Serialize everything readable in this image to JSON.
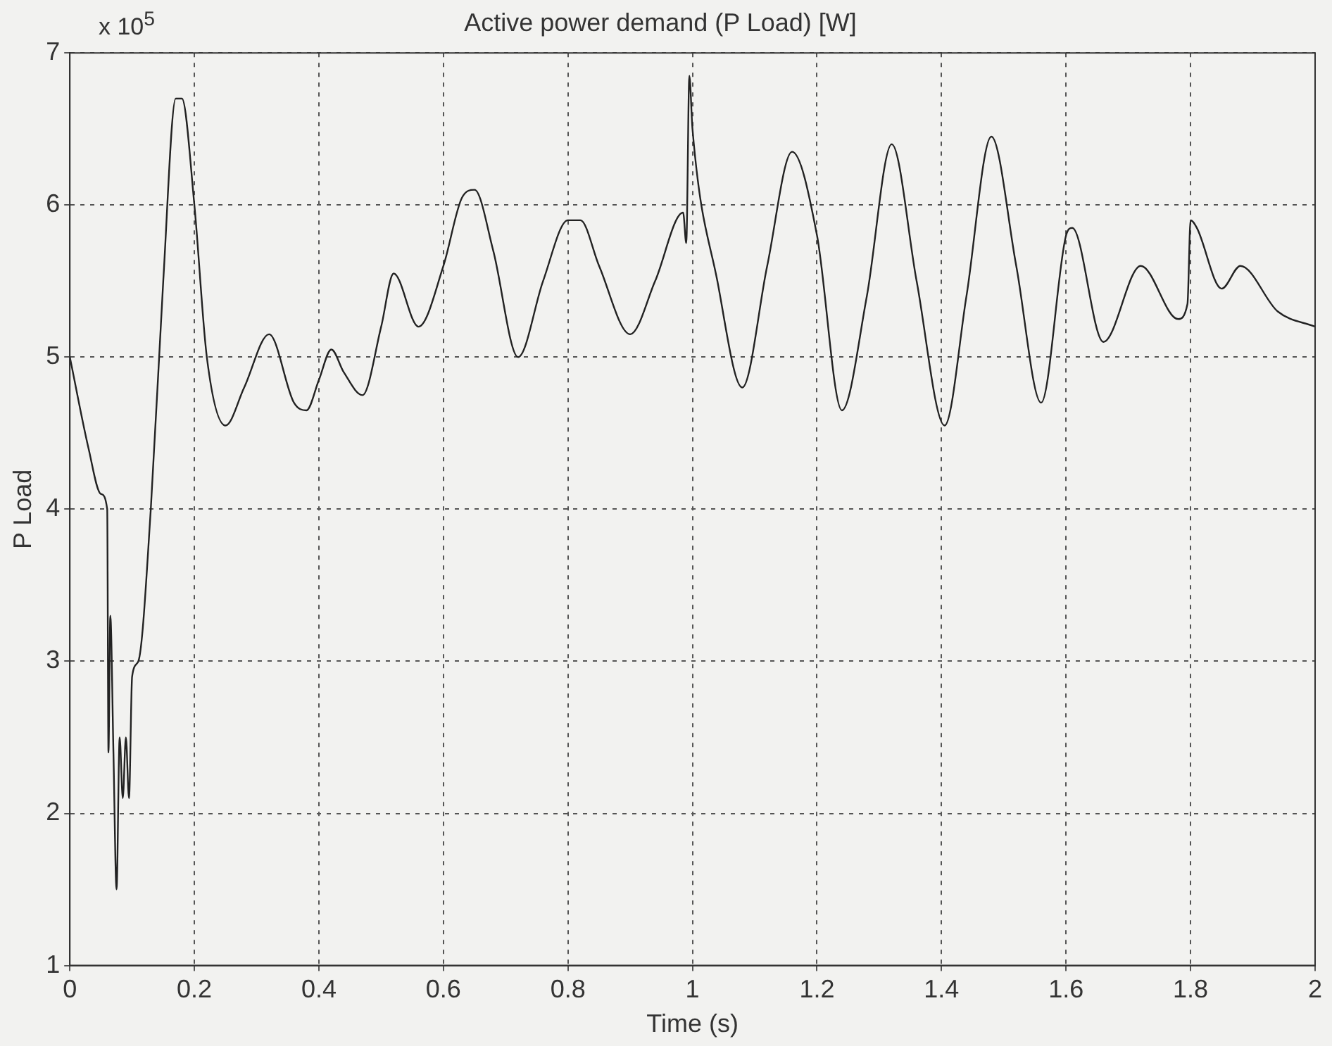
{
  "chart_data": {
    "type": "line",
    "title": "Active power demand (P Load) [W]",
    "xlabel": "Time (s)",
    "ylabel": "P Load",
    "annotations": [
      "x 10$^{5}$"
    ],
    "series": [
      {
        "color": "#222222",
        "x": [
          0,
          0.03,
          0.05,
          0.06,
          0.062,
          0.065,
          0.07,
          0.075,
          0.08,
          0.085,
          0.09,
          0.095,
          0.1,
          0.11,
          0.13,
          0.15,
          0.17,
          0.18,
          0.2,
          0.22,
          0.25,
          0.28,
          0.32,
          0.36,
          0.38,
          0.4,
          0.42,
          0.44,
          0.47,
          0.5,
          0.52,
          0.56,
          0.6,
          0.63,
          0.65,
          0.68,
          0.72,
          0.76,
          0.8,
          0.82,
          0.85,
          0.9,
          0.94,
          0.985,
          0.99,
          0.995,
          1.0,
          1.04,
          1.08,
          1.12,
          1.16,
          1.2,
          1.24,
          1.28,
          1.32,
          1.36,
          1.405,
          1.44,
          1.48,
          1.52,
          1.56,
          1.6,
          1.61,
          1.66,
          1.72,
          1.78,
          1.795,
          1.8,
          1.81,
          1.85,
          1.88,
          1.94,
          2.0
        ],
        "values": [
          5.0,
          4.4,
          4.1,
          4.0,
          2.4,
          3.3,
          2.4,
          1.5,
          2.5,
          2.1,
          2.5,
          2.1,
          2.9,
          3.0,
          4.0,
          5.5,
          6.7,
          6.7,
          6.0,
          5.0,
          4.55,
          4.8,
          5.15,
          4.7,
          4.65,
          4.85,
          5.05,
          4.9,
          4.75,
          5.2,
          5.55,
          5.2,
          5.6,
          6.05,
          6.1,
          5.7,
          5.0,
          5.5,
          5.9,
          5.9,
          5.6,
          5.15,
          5.5,
          5.95,
          5.75,
          6.85,
          6.5,
          5.5,
          4.8,
          5.6,
          6.35,
          5.8,
          4.65,
          5.4,
          6.4,
          5.5,
          4.55,
          5.4,
          6.45,
          5.6,
          4.7,
          5.8,
          5.85,
          5.1,
          5.6,
          5.25,
          5.35,
          5.9,
          5.85,
          5.45,
          5.6,
          5.3,
          5.2
        ]
      }
    ],
    "xlim": [
      0,
      2
    ],
    "xticks": [
      0,
      0.2,
      0.4,
      0.6,
      0.8,
      1,
      1.2,
      1.4,
      1.6,
      1.8,
      2
    ],
    "ylim": [
      1,
      7
    ],
    "yticks": [
      1,
      2,
      3,
      4,
      5,
      6,
      7
    ],
    "grid": true,
    "legend": false,
    "marker": "none",
    "line_style": "solid"
  }
}
